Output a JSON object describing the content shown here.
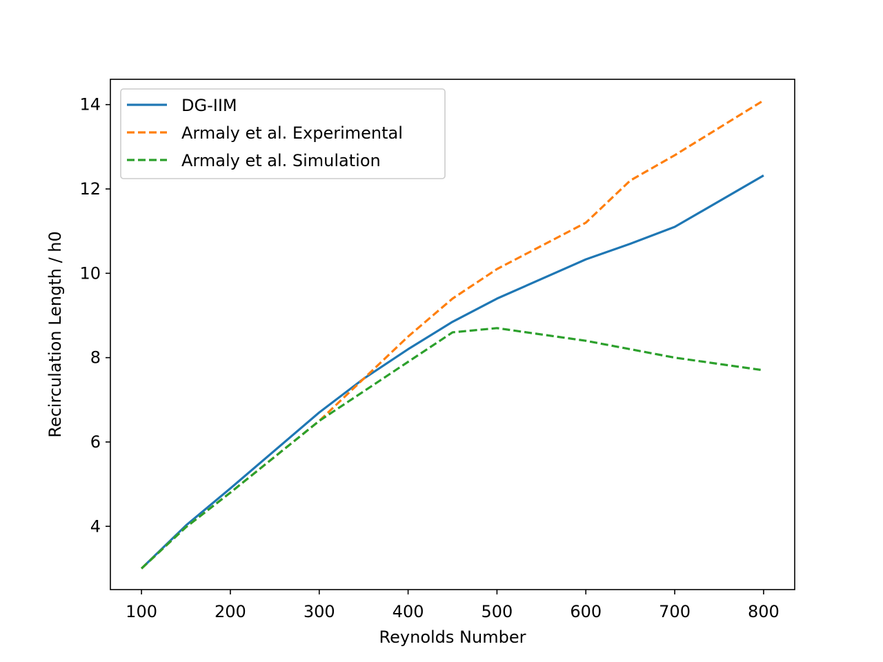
{
  "chart_data": {
    "type": "line",
    "title": "",
    "xlabel": "Reynolds Number",
    "ylabel": "Recirculation Length / h0",
    "xlim": [
      65,
      835
    ],
    "ylim": [
      2.5,
      14.6
    ],
    "xticks": [
      100,
      200,
      300,
      400,
      500,
      600,
      700,
      800
    ],
    "yticks": [
      4,
      6,
      8,
      10,
      12,
      14
    ],
    "grid": false,
    "legend": "top-left",
    "series": [
      {
        "name": "DG-IIM",
        "color": "#1f77b4",
        "dash": "solid",
        "x": [
          100,
          150,
          200,
          300,
          350,
          400,
          450,
          500,
          600,
          650,
          700,
          800
        ],
        "y": [
          3.0,
          4.02,
          4.9,
          6.7,
          7.5,
          8.2,
          8.85,
          9.4,
          10.33,
          10.7,
          11.1,
          12.32
        ]
      },
      {
        "name": "Armaly et al. Experimental",
        "color": "#ff7f0e",
        "dash": "dashed",
        "x": [
          100,
          150,
          200,
          300,
          350,
          400,
          450,
          500,
          600,
          650,
          700,
          800
        ],
        "y": [
          3.0,
          3.98,
          4.8,
          6.5,
          7.5,
          8.5,
          9.4,
          10.1,
          11.2,
          12.2,
          12.8,
          14.1
        ]
      },
      {
        "name": "Armaly et al. Simulation",
        "color": "#2ca02c",
        "dash": "dashed",
        "x": [
          100,
          150,
          200,
          300,
          350,
          400,
          450,
          500,
          600,
          650,
          700,
          800
        ],
        "y": [
          3.0,
          3.98,
          4.8,
          6.5,
          7.2,
          7.9,
          8.6,
          8.7,
          8.4,
          8.2,
          8.0,
          7.7
        ]
      }
    ]
  }
}
